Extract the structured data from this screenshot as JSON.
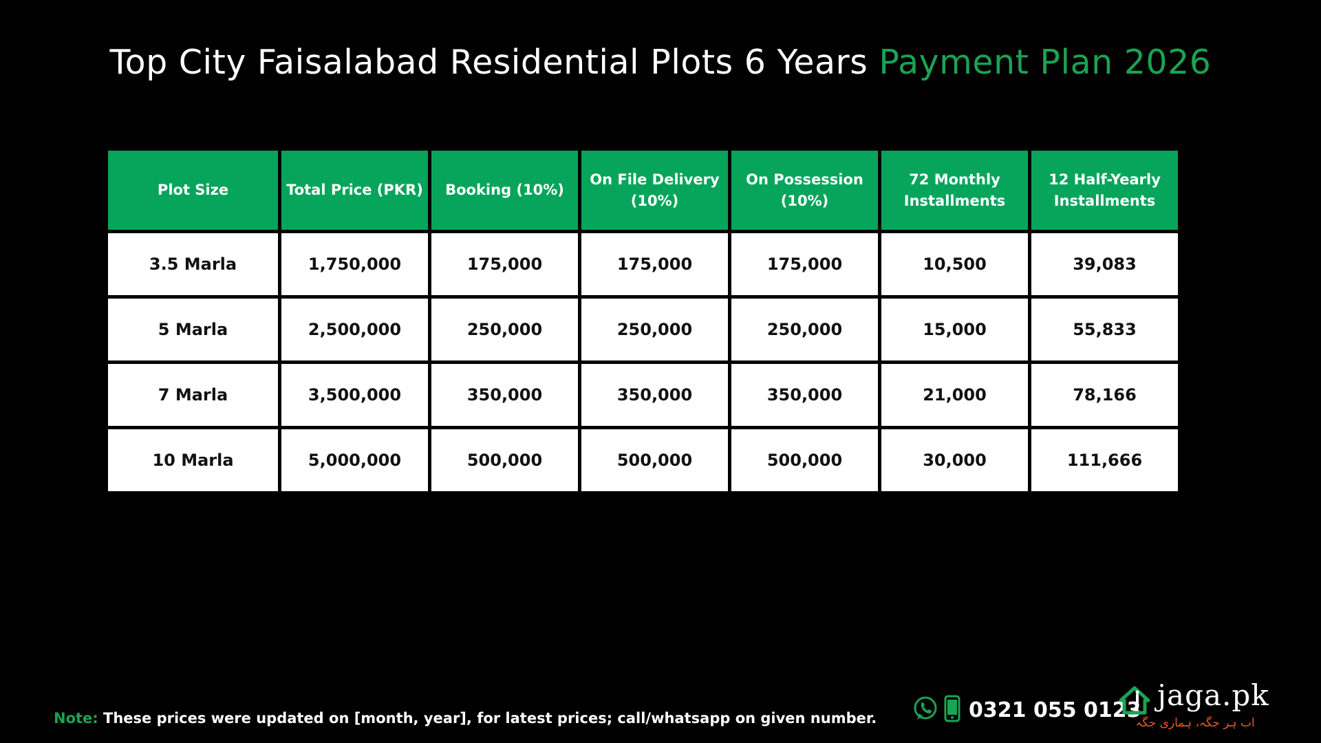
{
  "title": {
    "main": "Top City Faisalabad Residential Plots 6 Years",
    "accent": "Payment Plan 2026"
  },
  "table": {
    "headers": [
      "Plot Size",
      "Total Price (PKR)",
      "Booking (10%)",
      "On File Delivery (10%)",
      "On Possession (10%)",
      "72 Monthly Installments",
      "12 Half-Yearly Installments"
    ],
    "rows": [
      [
        "3.5 Marla",
        "1,750,000",
        "175,000",
        "175,000",
        "175,000",
        "10,500",
        "39,083"
      ],
      [
        "5 Marla",
        "2,500,000",
        "250,000",
        "250,000",
        "250,000",
        "15,000",
        "55,833"
      ],
      [
        "7 Marla",
        "3,500,000",
        "350,000",
        "350,000",
        "350,000",
        "21,000",
        "78,166"
      ],
      [
        "10 Marla",
        "5,000,000",
        "500,000",
        "500,000",
        "500,000",
        "30,000",
        "111,666"
      ]
    ]
  },
  "note": {
    "label": "Note:",
    "text": "These prices were updated on [month, year], for latest prices; call/whatsapp on given number."
  },
  "contact": {
    "phone": "0321 055 0123",
    "icons": [
      "whatsapp-icon",
      "mobile-phone-icon"
    ]
  },
  "brand": {
    "name": "jaga.pk",
    "tagline": "اب ہر جگہ، ہماری جگہ"
  },
  "colors": {
    "background": "#000000",
    "accent_green": "#1aa355",
    "header_green": "#07a55c",
    "tagline_orange": "#e5592b"
  }
}
